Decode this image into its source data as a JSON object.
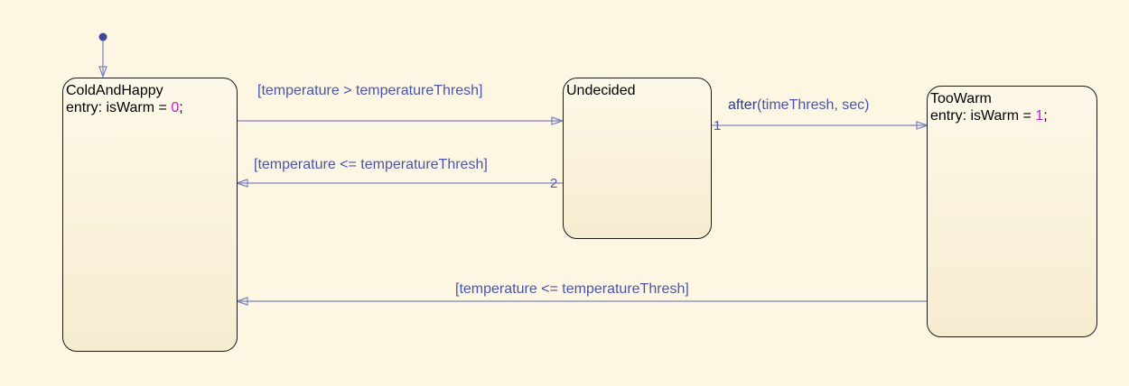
{
  "states": {
    "cold_and_happy": {
      "name": "ColdAndHappy",
      "entry_prefix": "entry: isWarm = ",
      "entry_value": "0",
      "entry_suffix": ";"
    },
    "undecided": {
      "name": "Undecided"
    },
    "too_warm": {
      "name": "TooWarm",
      "entry_prefix": "entry: isWarm = ",
      "entry_value": "1",
      "entry_suffix": ";"
    }
  },
  "transitions": {
    "cold_to_undecided": {
      "guard": "[temperature > temperatureThresh]"
    },
    "undecided_to_cold": {
      "guard": "[temperature <= temperatureThresh]",
      "order": "2"
    },
    "undecided_to_toowarm": {
      "keyword": "after",
      "args": "(timeThresh, sec)",
      "order": "1"
    },
    "toowarm_to_cold": {
      "guard": "[temperature <= temperatureThresh]"
    }
  },
  "colors": {
    "background": "#fdf6e3",
    "state_border": "#1a1a1a",
    "transition_line": "#7b82bd",
    "label_text": "#4b55a8",
    "numeric_literal": "#c21fc2"
  }
}
